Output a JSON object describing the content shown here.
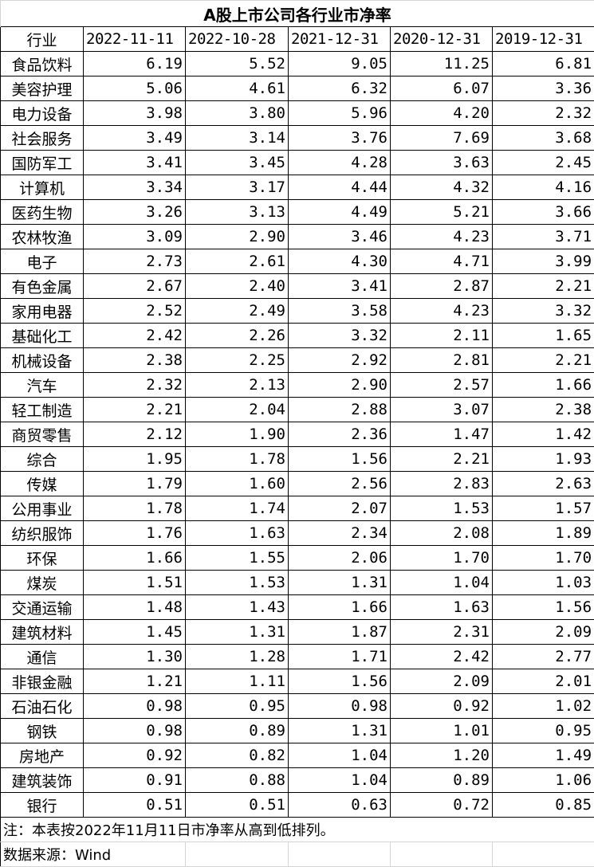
{
  "title": "A股上市公司各行业市净率",
  "header": [
    "行业",
    "2022-11-11",
    "2022-10-28",
    "2021-12-31",
    "2020-12-31",
    "2019-12-31"
  ],
  "rows": [
    [
      "食品饮料",
      "6.19",
      "5.52",
      "9.05",
      "11.25",
      "6.81"
    ],
    [
      "美容护理",
      "5.06",
      "4.61",
      "6.32",
      "6.07",
      "3.36"
    ],
    [
      "电力设备",
      "3.98",
      "3.80",
      "5.96",
      "4.20",
      "2.32"
    ],
    [
      "社会服务",
      "3.49",
      "3.14",
      "3.76",
      "7.69",
      "3.68"
    ],
    [
      "国防军工",
      "3.41",
      "3.45",
      "4.28",
      "3.63",
      "2.45"
    ],
    [
      "计算机",
      "3.34",
      "3.17",
      "4.44",
      "4.32",
      "4.16"
    ],
    [
      "医药生物",
      "3.26",
      "3.13",
      "4.49",
      "5.21",
      "3.66"
    ],
    [
      "农林牧渔",
      "3.09",
      "2.90",
      "3.46",
      "4.23",
      "3.71"
    ],
    [
      "电子",
      "2.73",
      "2.61",
      "4.30",
      "4.71",
      "3.99"
    ],
    [
      "有色金属",
      "2.67",
      "2.40",
      "3.41",
      "2.87",
      "2.21"
    ],
    [
      "家用电器",
      "2.52",
      "2.49",
      "3.58",
      "4.23",
      "3.32"
    ],
    [
      "基础化工",
      "2.42",
      "2.26",
      "3.32",
      "2.11",
      "1.65"
    ],
    [
      "机械设备",
      "2.38",
      "2.25",
      "2.92",
      "2.81",
      "2.21"
    ],
    [
      "汽车",
      "2.32",
      "2.13",
      "2.90",
      "2.57",
      "1.66"
    ],
    [
      "轻工制造",
      "2.21",
      "2.04",
      "2.88",
      "3.07",
      "2.38"
    ],
    [
      "商贸零售",
      "2.12",
      "1.90",
      "2.36",
      "1.47",
      "1.42"
    ],
    [
      "综合",
      "1.95",
      "1.78",
      "1.56",
      "2.21",
      "1.93"
    ],
    [
      "传媒",
      "1.79",
      "1.60",
      "2.56",
      "2.83",
      "2.63"
    ],
    [
      "公用事业",
      "1.78",
      "1.74",
      "2.07",
      "1.53",
      "1.57"
    ],
    [
      "纺织服饰",
      "1.76",
      "1.63",
      "2.34",
      "2.08",
      "1.89"
    ],
    [
      "环保",
      "1.66",
      "1.55",
      "2.06",
      "1.70",
      "1.70"
    ],
    [
      "煤炭",
      "1.51",
      "1.53",
      "1.31",
      "1.04",
      "1.03"
    ],
    [
      "交通运输",
      "1.48",
      "1.43",
      "1.66",
      "1.63",
      "1.56"
    ],
    [
      "建筑材料",
      "1.45",
      "1.31",
      "1.87",
      "2.31",
      "2.09"
    ],
    [
      "通信",
      "1.30",
      "1.28",
      "1.71",
      "2.42",
      "2.77"
    ],
    [
      "非银金融",
      "1.21",
      "1.11",
      "1.56",
      "2.09",
      "2.01"
    ],
    [
      "石油石化",
      "0.98",
      "0.95",
      "0.98",
      "0.92",
      "1.02"
    ],
    [
      "钢铁",
      "0.98",
      "0.89",
      "1.31",
      "1.01",
      "0.95"
    ],
    [
      "房地产",
      "0.92",
      "0.82",
      "1.04",
      "1.20",
      "1.49"
    ],
    [
      "建筑装饰",
      "0.91",
      "0.88",
      "1.04",
      "0.89",
      "1.06"
    ],
    [
      "银行",
      "0.51",
      "0.51",
      "0.63",
      "0.72",
      "0.85"
    ]
  ],
  "note": "注：本表按2022年11月11日市净率从高到低排列。",
  "source": "数据来源：Wind"
}
